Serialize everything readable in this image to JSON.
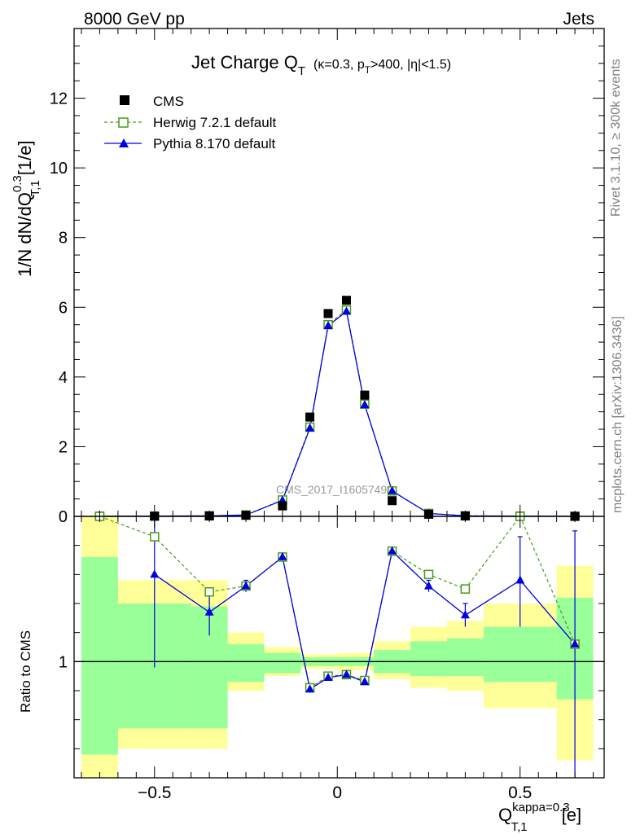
{
  "header": {
    "left": "8000 GeV pp",
    "right": "Jets"
  },
  "side_labels": {
    "rivet": "Rivet 3.1.10, ≥ 300k events",
    "mcplots": "mcplots.cern.ch [arXiv:1306.3436]"
  },
  "title": {
    "main": "Jet Charge Q",
    "sub": "T",
    "kappa": "κ=0.3, p",
    "pt_sub": "T",
    "cut": ">400, |η|<1.5)"
  },
  "watermark": "CMS_2017_I1605749",
  "legend": [
    {
      "name": "CMS",
      "marker": "filled-square",
      "color": "#000000"
    },
    {
      "name": "Herwig 7.2.1 default",
      "marker": "open-square",
      "color": "#4a9a1a",
      "dash": true
    },
    {
      "name": "Pythia 8.170 default",
      "marker": "filled-triangle",
      "color": "#0000e0"
    }
  ],
  "y_axis_label": {
    "pre": "1/N dN/dQ",
    "sup": "0.3",
    "sub": "T,1",
    "post": "[1/e]"
  },
  "ratio_label": "Ratio to CMS",
  "x_axis_label": {
    "pre": "Q",
    "sup": "kappa=0.3",
    "sub": "T,1",
    "post": "[e]"
  },
  "chart_data": [
    {
      "type": "scatter",
      "panel": "main",
      "xlim": [
        -0.72,
        0.73
      ],
      "ylim": [
        0,
        14
      ],
      "yticks": [
        0,
        2,
        4,
        6,
        8,
        10,
        12
      ],
      "xticks": [
        -0.5,
        0,
        0.5
      ],
      "series": [
        {
          "name": "CMS",
          "color": "#000000",
          "x": [
            -0.65,
            -0.5,
            -0.35,
            -0.25,
            -0.15,
            -0.075,
            -0.025,
            0.025,
            0.075,
            0.15,
            0.25,
            0.35,
            0.5,
            0.65
          ],
          "y": [
            0.003,
            0.005,
            0.012,
            0.03,
            0.3,
            2.85,
            5.82,
            6.2,
            3.48,
            0.45,
            0.06,
            0.012,
            0.004,
            0.002
          ]
        },
        {
          "name": "Herwig 7.2.1 default",
          "color": "#4a9a1a",
          "x": [
            -0.65,
            -0.5,
            -0.35,
            -0.25,
            -0.15,
            -0.075,
            -0.025,
            0.025,
            0.075,
            0.15,
            0.25,
            0.35,
            0.5,
            0.65
          ],
          "y": [
            0.005,
            0.007,
            0.017,
            0.04,
            0.47,
            2.56,
            5.5,
            5.92,
            3.22,
            0.73,
            0.085,
            0.016,
            0.006,
            0.0022
          ]
        },
        {
          "name": "Pythia 8.170 default",
          "color": "#0000e0",
          "x": [
            -0.65,
            -0.5,
            -0.35,
            -0.25,
            -0.15,
            -0.075,
            -0.025,
            0.025,
            0.075,
            0.15,
            0.25,
            0.35,
            0.5,
            0.65
          ],
          "y": [
            0.004,
            0.007,
            0.015,
            0.04,
            0.46,
            2.53,
            5.47,
            5.88,
            3.2,
            0.73,
            0.083,
            0.015,
            0.006,
            0.0022
          ]
        }
      ]
    },
    {
      "type": "line",
      "panel": "ratio",
      "xlim": [
        -0.72,
        0.73
      ],
      "ylim": [
        0.6,
        1.5
      ],
      "reference_line": 1,
      "bins": [
        {
          "lo": -0.7,
          "hi": -0.6,
          "stat": [
            0.68,
            1.36
          ],
          "tot": [
            0.6,
            1.5
          ]
        },
        {
          "lo": -0.6,
          "hi": -0.4,
          "stat": [
            0.77,
            1.2
          ],
          "tot": [
            0.7,
            1.28
          ]
        },
        {
          "lo": -0.4,
          "hi": -0.3,
          "stat": [
            0.77,
            1.19
          ],
          "tot": [
            0.7,
            1.28
          ]
        },
        {
          "lo": -0.3,
          "hi": -0.2,
          "stat": [
            0.93,
            1.06
          ],
          "tot": [
            0.9,
            1.1
          ]
        },
        {
          "lo": -0.2,
          "hi": -0.1,
          "stat": [
            0.96,
            1.03
          ],
          "tot": [
            0.95,
            1.05
          ]
        },
        {
          "lo": -0.1,
          "hi": 0.0,
          "stat": [
            0.985,
            1.015
          ],
          "tot": [
            0.975,
            1.025
          ]
        },
        {
          "lo": 0.0,
          "hi": 0.1,
          "stat": [
            0.985,
            1.015
          ],
          "tot": [
            0.97,
            1.03
          ]
        },
        {
          "lo": 0.1,
          "hi": 0.2,
          "stat": [
            0.96,
            1.04
          ],
          "tot": [
            0.94,
            1.07
          ]
        },
        {
          "lo": 0.2,
          "hi": 0.3,
          "stat": [
            0.95,
            1.07
          ],
          "tot": [
            0.91,
            1.12
          ]
        },
        {
          "lo": 0.3,
          "hi": 0.4,
          "stat": [
            0.95,
            1.08
          ],
          "tot": [
            0.9,
            1.14
          ]
        },
        {
          "lo": 0.4,
          "hi": 0.6,
          "stat": [
            0.93,
            1.12
          ],
          "tot": [
            0.84,
            1.2
          ]
        },
        {
          "lo": 0.6,
          "hi": 0.7,
          "stat": [
            0.87,
            1.22
          ],
          "tot": [
            0.66,
            1.33
          ]
        }
      ],
      "series": [
        {
          "name": "Herwig 7.2.1 default",
          "color": "#4a9a1a",
          "x": [
            -0.65,
            -0.5,
            -0.35,
            -0.25,
            -0.15,
            -0.075,
            -0.025,
            0.025,
            0.075,
            0.15,
            0.25,
            0.35,
            0.5,
            0.65
          ],
          "y": [
            1.54,
            1.43,
            1.24,
            1.26,
            1.36,
            0.91,
            0.95,
            0.955,
            0.935,
            1.38,
            1.3,
            1.25,
            1.52,
            1.06
          ]
        },
        {
          "name": "Pythia 8.170 default",
          "color": "#0000e0",
          "x": [
            -0.5,
            -0.35,
            -0.25,
            -0.15,
            -0.075,
            -0.025,
            0.025,
            0.075,
            0.15,
            0.25,
            0.35,
            0.5,
            0.65
          ],
          "y": [
            1.3,
            1.17,
            1.26,
            1.36,
            0.905,
            0.945,
            0.955,
            0.93,
            1.38,
            1.26,
            1.16,
            1.28,
            1.06
          ],
          "err": [
            [
              0.98,
              1.62
            ],
            [
              1.09,
              1.25
            ],
            [
              1.24,
              1.28
            ],
            [
              1.35,
              1.37
            ],
            [
              0.9,
              0.91
            ],
            [
              0.94,
              0.95
            ],
            [
              0.95,
              0.96
            ],
            [
              0.93,
              0.935
            ],
            [
              1.37,
              1.39
            ],
            [
              1.24,
              1.28
            ],
            [
              1.12,
              1.2
            ],
            [
              1.12,
              1.43
            ],
            [
              0.6,
              1.45
            ]
          ]
        }
      ]
    }
  ]
}
